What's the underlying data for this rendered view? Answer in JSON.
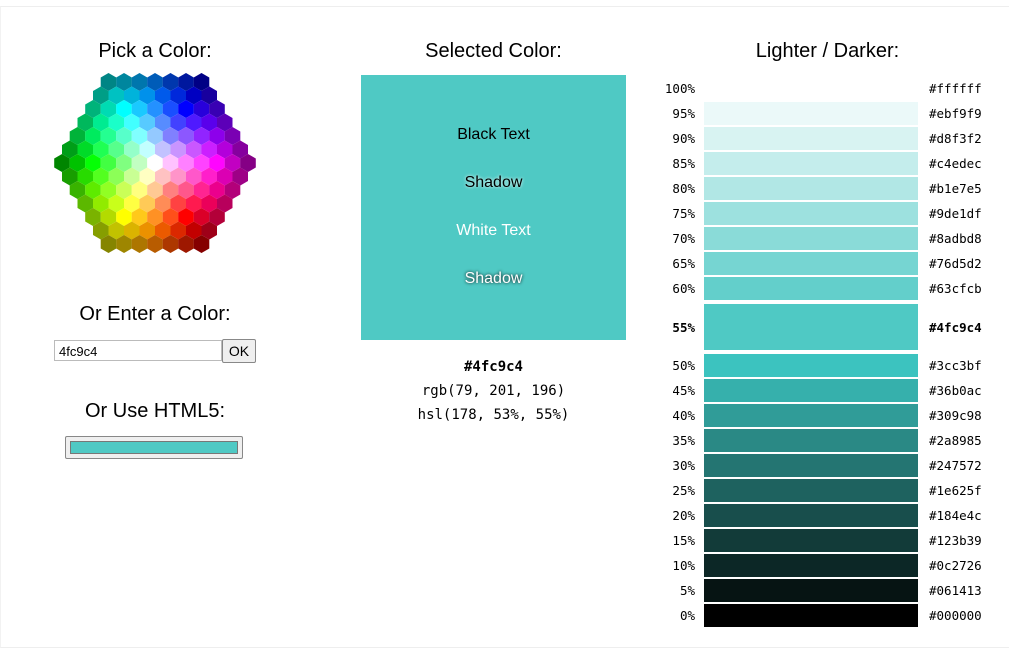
{
  "picker": {
    "title": "Pick a Color:"
  },
  "enter": {
    "title": "Or Enter a Color:",
    "input": "4fc9c4",
    "button": "OK"
  },
  "html5": {
    "title": "Or Use HTML5:",
    "color": "#4fc9c4"
  },
  "selected": {
    "title": "Selected Color:",
    "samples": [
      "Black Text",
      "Shadow",
      "White Text",
      "Shadow"
    ],
    "hex": "#4fc9c4",
    "rgb": "rgb(79, 201, 196)",
    "hsl": "hsl(178, 53%, 55%)"
  },
  "shades": {
    "title": "Lighter / Darker:",
    "selected": 9,
    "rows": [
      {
        "percent": "100%",
        "hex": "#ffffff"
      },
      {
        "percent": "95%",
        "hex": "#ebf9f9"
      },
      {
        "percent": "90%",
        "hex": "#d8f3f2"
      },
      {
        "percent": "85%",
        "hex": "#c4edec"
      },
      {
        "percent": "80%",
        "hex": "#b1e7e5"
      },
      {
        "percent": "75%",
        "hex": "#9de1df"
      },
      {
        "percent": "70%",
        "hex": "#8adbd8"
      },
      {
        "percent": "65%",
        "hex": "#76d5d2"
      },
      {
        "percent": "60%",
        "hex": "#63cfcb"
      },
      {
        "percent": "55%",
        "hex": "#4fc9c4"
      },
      {
        "percent": "50%",
        "hex": "#3cc3bf"
      },
      {
        "percent": "45%",
        "hex": "#36b0ac"
      },
      {
        "percent": "40%",
        "hex": "#309c98"
      },
      {
        "percent": "35%",
        "hex": "#2a8985"
      },
      {
        "percent": "30%",
        "hex": "#247572"
      },
      {
        "percent": "25%",
        "hex": "#1e625f"
      },
      {
        "percent": "20%",
        "hex": "#184e4c"
      },
      {
        "percent": "15%",
        "hex": "#123b39"
      },
      {
        "percent": "10%",
        "hex": "#0c2726"
      },
      {
        "percent": "5%",
        "hex": "#061413"
      },
      {
        "percent": "0%",
        "hex": "#000000"
      }
    ]
  }
}
